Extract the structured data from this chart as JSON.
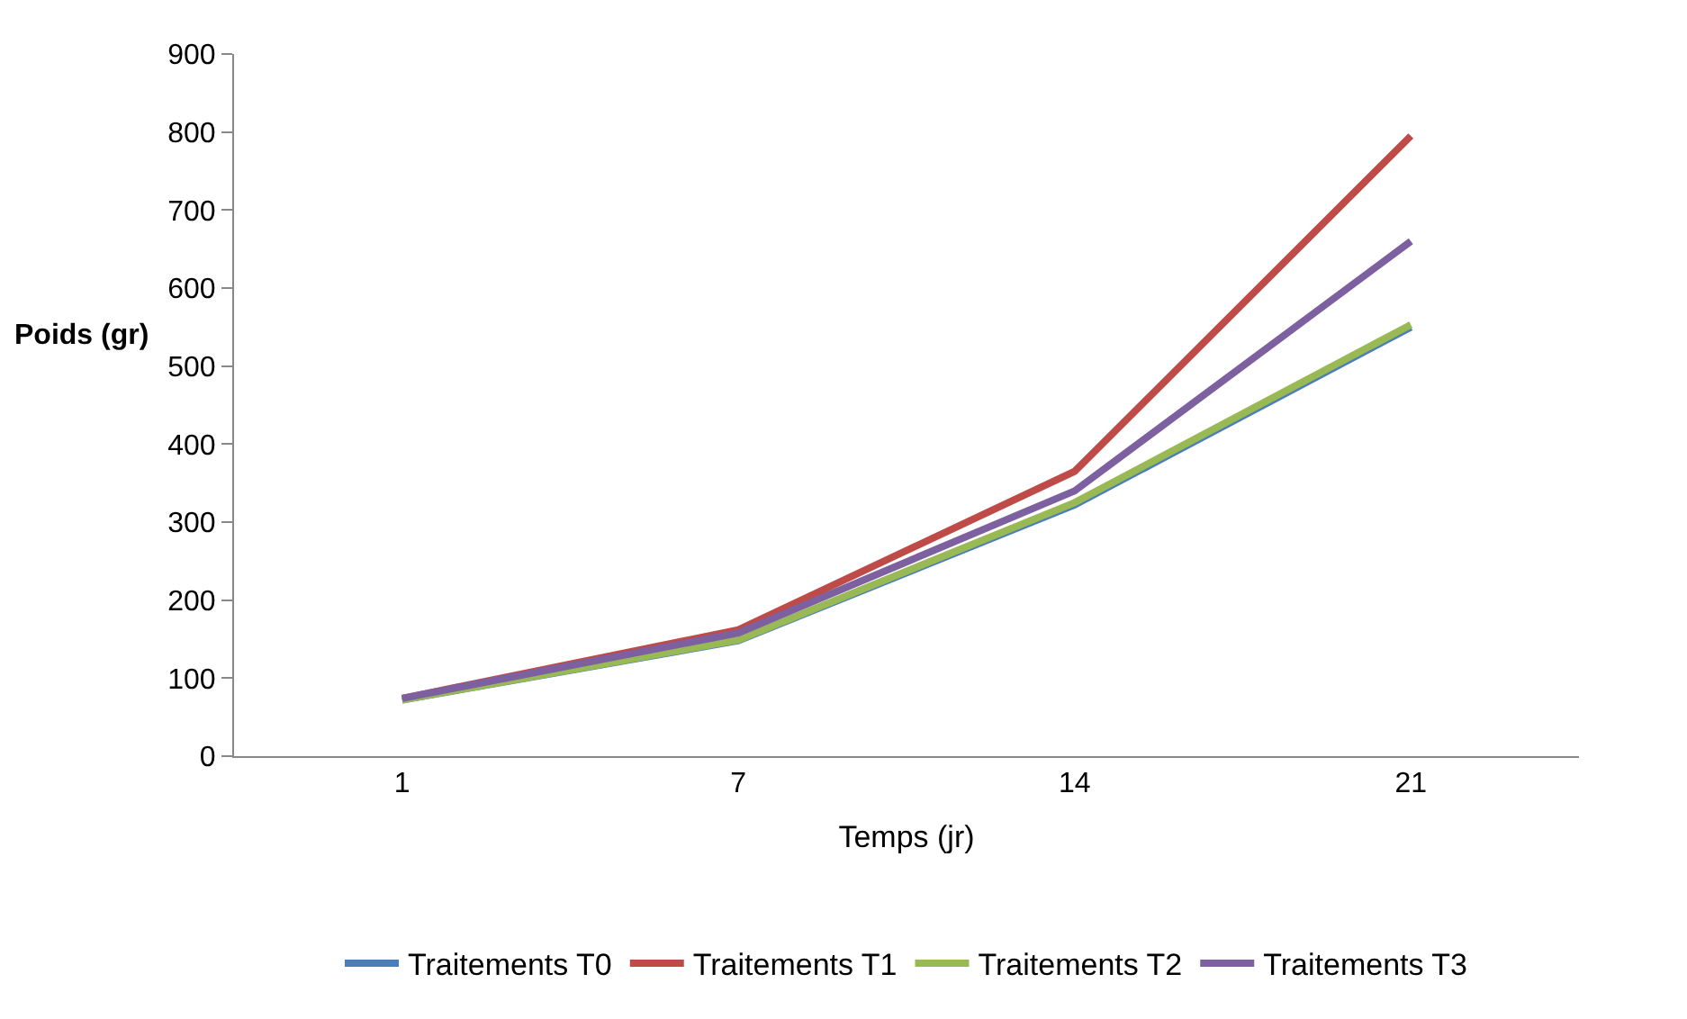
{
  "chart_data": {
    "type": "line",
    "xlabel": "Temps (jr)",
    "ylabel": "Poids (gr)",
    "categories": [
      "1",
      "7",
      "14",
      "21"
    ],
    "ylim": [
      0,
      900
    ],
    "yticks": [
      0,
      100,
      200,
      300,
      400,
      500,
      600,
      700,
      800,
      900
    ],
    "legend": "bottom",
    "marker": "none",
    "line_style": "solid",
    "series": [
      {
        "name": "Traitements T0",
        "color": "#4a7ebb",
        "values": [
          72,
          148,
          322,
          550
        ]
      },
      {
        "name": "Traitements T1",
        "color": "#be4b48",
        "values": [
          74,
          162,
          365,
          795
        ]
      },
      {
        "name": "Traitements T2",
        "color": "#98b954",
        "values": [
          72,
          149,
          325,
          553
        ]
      },
      {
        "name": "Traitements T3",
        "color": "#7d60a0",
        "values": [
          74,
          158,
          340,
          660
        ]
      }
    ]
  }
}
